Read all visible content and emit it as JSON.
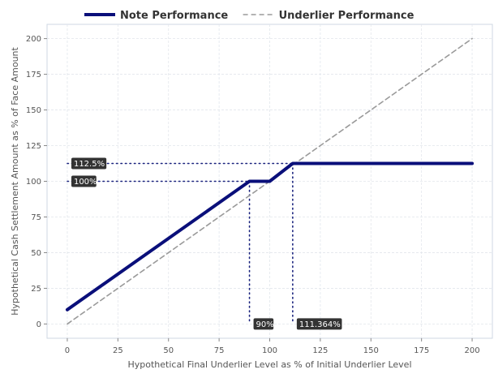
{
  "chart_data": {
    "type": "line",
    "xlabel": "Hypothetical Final Underlier Level as % of Initial Underlier Level",
    "ylabel": "Hypothetical Cash Settlement Amount as % of Face Amount",
    "xlim": [
      -10,
      210
    ],
    "ylim": [
      -10,
      210
    ],
    "xticks": [
      0,
      25,
      50,
      75,
      100,
      125,
      150,
      175,
      200
    ],
    "yticks": [
      0,
      25,
      50,
      75,
      100,
      125,
      150,
      175,
      200
    ],
    "grid": true,
    "legend_position": "top",
    "series": [
      {
        "name": "Note Performance",
        "color": "#0a0f7a",
        "style": "solid",
        "points": [
          [
            0,
            10
          ],
          [
            90,
            100
          ],
          [
            100,
            100
          ],
          [
            111.364,
            112.5
          ],
          [
            200,
            112.5
          ]
        ]
      },
      {
        "name": "Underlier Performance",
        "color": "#9a9a9a",
        "style": "dashed",
        "points": [
          [
            0,
            0
          ],
          [
            200,
            200
          ]
        ]
      }
    ],
    "reference_lines": [
      {
        "points": [
          [
            0,
            112.5
          ],
          [
            111.364,
            112.5
          ]
        ]
      },
      {
        "points": [
          [
            0,
            100
          ],
          [
            90,
            100
          ]
        ]
      },
      {
        "points": [
          [
            90,
            100
          ],
          [
            90,
            0
          ]
        ]
      },
      {
        "points": [
          [
            111.364,
            112.5
          ],
          [
            111.364,
            0
          ]
        ]
      }
    ],
    "annotations": [
      {
        "text": "112.5%",
        "x": 0,
        "y": 112.5
      },
      {
        "text": "100%",
        "x": 0,
        "y": 100
      },
      {
        "text": "90%",
        "x": 90,
        "y": 0
      },
      {
        "text": "111.364%",
        "x": 111.364,
        "y": 0
      }
    ]
  }
}
